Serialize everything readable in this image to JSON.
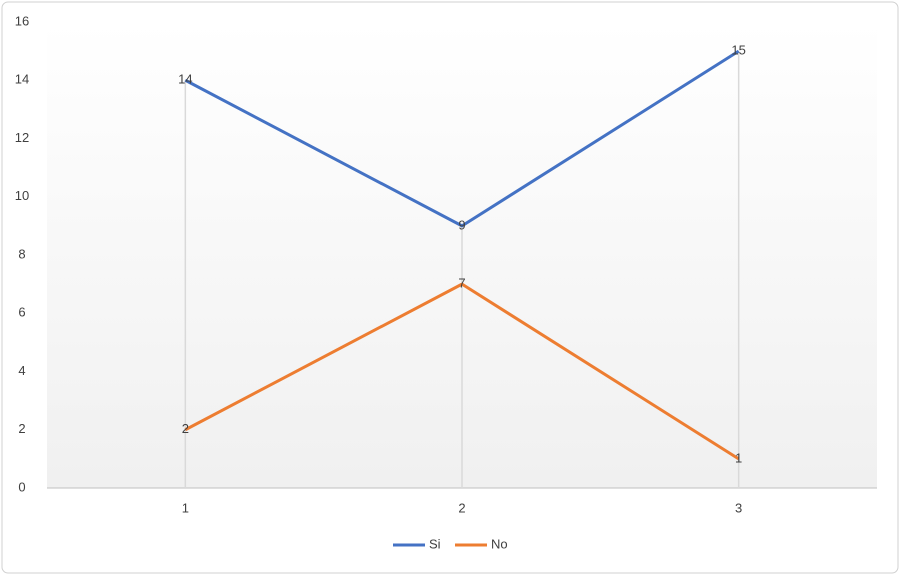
{
  "chart_data": {
    "type": "line",
    "categories": [
      "1",
      "2",
      "3"
    ],
    "series": [
      {
        "name": "Si",
        "color": "#4472c4",
        "values": [
          14,
          9,
          15
        ]
      },
      {
        "name": "No",
        "color": "#ed7d31",
        "values": [
          2,
          7,
          1
        ]
      }
    ],
    "ylim": [
      0,
      16
    ],
    "yticks": [
      0,
      2,
      4,
      6,
      8,
      10,
      12,
      14,
      16
    ],
    "grid": false,
    "drop_lines": true,
    "data_labels": true,
    "legend": "bottom"
  }
}
